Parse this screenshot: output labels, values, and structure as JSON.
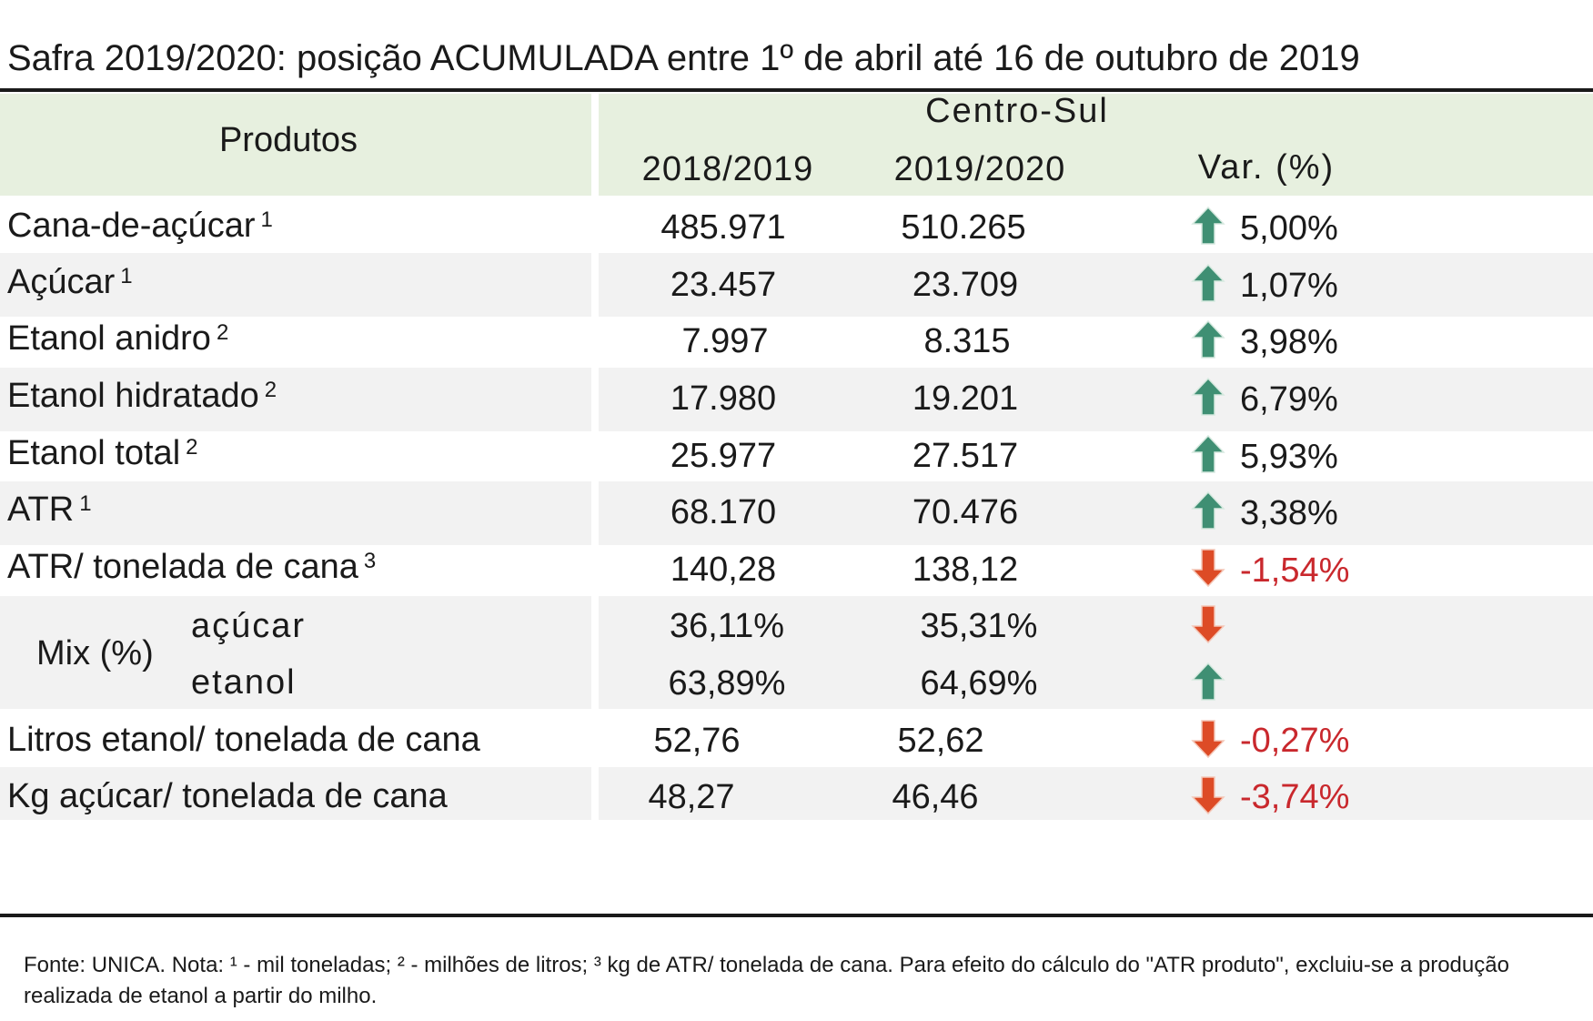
{
  "title": "Safra 2019/2020: posição ACUMULADA entre 1º de abril até 16 de outubro de 2019",
  "header": {
    "products": "Produtos",
    "region": "Centro-Sul",
    "col1": "2018/2019",
    "col2": "2019/2020",
    "col3": "Var. (%)"
  },
  "rows": [
    {
      "label": "Cana-de-açúcar",
      "note": "1",
      "v1": "485.971",
      "v2": "510.265",
      "trend": "up",
      "var": "5,00%"
    },
    {
      "label": "Açúcar",
      "note": "1",
      "v1": "23.457",
      "v2": "23.709",
      "trend": "up",
      "var": "1,07%"
    },
    {
      "label": "Etanol anidro",
      "note": "2",
      "v1": "7.997",
      "v2": "8.315",
      "trend": "up",
      "var": "3,98%"
    },
    {
      "label": "Etanol hidratado",
      "note": "2",
      "v1": "17.980",
      "v2": "19.201",
      "trend": "up",
      "var": "6,79%"
    },
    {
      "label": "Etanol total",
      "note": "2",
      "v1": "25.977",
      "v2": "27.517",
      "trend": "up",
      "var": "5,93%"
    },
    {
      "label": "ATR",
      "note": "1",
      "v1": "68.170",
      "v2": "70.476",
      "trend": "up",
      "var": "3,38%"
    },
    {
      "label": "ATR/ tonelada de cana",
      "note": "3",
      "v1": "140,28",
      "v2": "138,12",
      "trend": "down",
      "var": "-1,54%"
    }
  ],
  "mix": {
    "label": "Mix (%)",
    "acucar": {
      "label": "açúcar",
      "v1": "36,11%",
      "v2": "35,31%",
      "trend": "down"
    },
    "etanol": {
      "label": "etanol",
      "v1": "63,89%",
      "v2": "64,69%",
      "trend": "up"
    }
  },
  "rows2": [
    {
      "label": "Litros etanol/ tonelada de cana",
      "v1": "52,76",
      "v2": "52,62",
      "trend": "down",
      "var": "-0,27%"
    },
    {
      "label": "Kg açúcar/ tonelada de cana",
      "v1": "48,27",
      "v2": "46,46",
      "trend": "down",
      "var": "-3,74%"
    }
  ],
  "footnote": "Fonte: UNICA. Nota: ¹ - mil toneladas; ² - milhões de litros; ³   kg de ATR/ tonelada de cana. Para efeito do cálculo do \"ATR produto\", excluiu-se a produção realizada de etanol a partir do milho.",
  "colors": {
    "header_bg": "#e7f0df",
    "row_bg": "#f2f2f2",
    "up_arrow": "#3f8f73",
    "down_arrow": "#dd4b26",
    "negative_text": "#c9282d"
  },
  "icons": {
    "up": "arrow-up-icon",
    "down": "arrow-down-icon"
  }
}
